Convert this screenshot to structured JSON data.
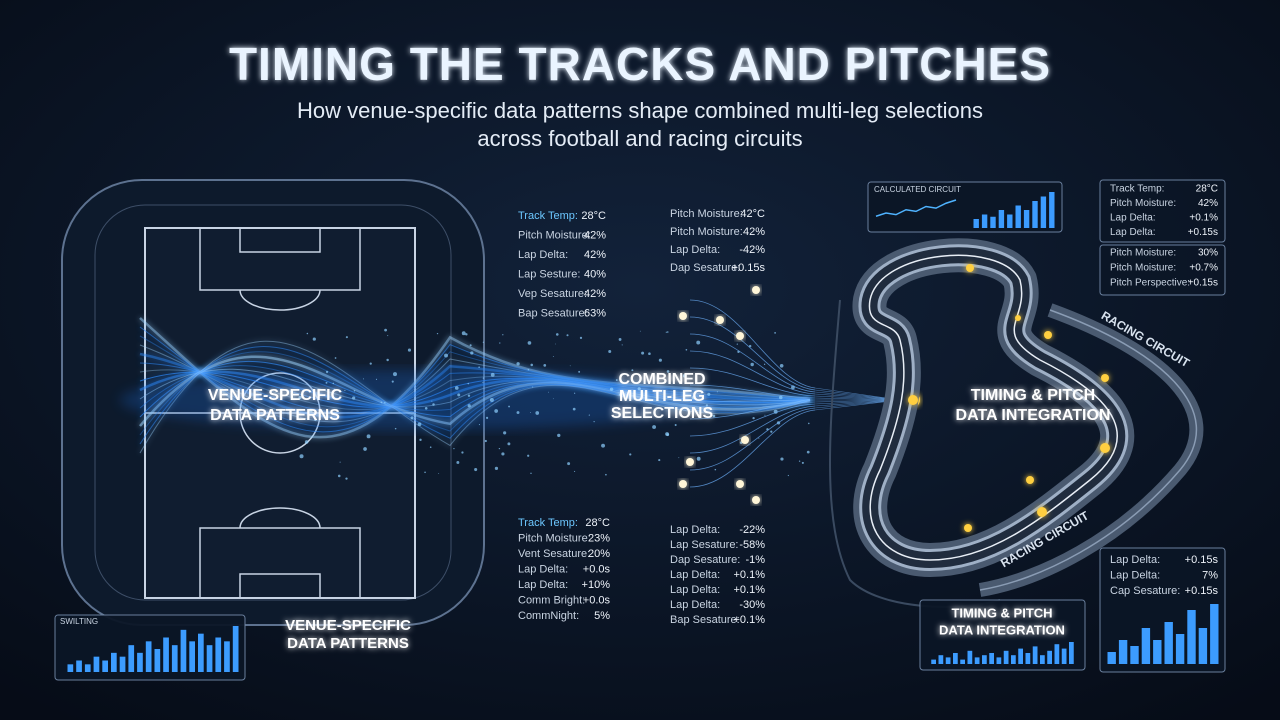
{
  "header": {
    "title": "TIMING THE TRACKS AND PITCHES",
    "subtitle": [
      "How venue-specific data patterns shape combined multi-leg selections",
      "across football and racing circuits"
    ]
  },
  "labels": {
    "pitch": [
      "VENUE-SPECIFIC",
      "DATA PATTERNS"
    ],
    "pitch_caption": [
      "VENUE-SPECIFIC",
      "DATA PATTERNS"
    ],
    "combined": [
      "COMBINED",
      "MULTI-LEG",
      "SELECTIONS"
    ],
    "integration": [
      "TIMING & PITCH",
      "DATA INTEGRATION"
    ],
    "circuit_top": "RACING CIRCUIT",
    "circuit_bottom": "RACING CIRCUIT",
    "integration_panel": [
      "TIMING & PITCH",
      "DATA INTEGRATION"
    ]
  },
  "stats": [
    {
      "rows": [
        [
          "Track Temp:",
          "28°C"
        ],
        [
          "Pitch Moisture:",
          "42%"
        ],
        [
          "Lap Delta:",
          "42%"
        ],
        [
          "Lap Sesture:",
          "40%"
        ],
        [
          "Vep Sesature:",
          "42%"
        ],
        [
          "Bap Sesature:",
          "63%"
        ]
      ]
    },
    {
      "rows": [
        [
          "Pitch Moisture:",
          "42°C"
        ],
        [
          "Pitch Moisture:",
          "42%"
        ],
        [
          "Lap Delta:",
          "-42%"
        ],
        [
          "Dap Sesature:",
          "+0.15s"
        ]
      ]
    },
    {
      "rows": [
        [
          "Track Temp:",
          "28°C"
        ],
        [
          "Pitch Moisture:",
          "23%"
        ],
        [
          "Vent Sesature:",
          "20%"
        ],
        [
          "Lap Delta:",
          "+0.0s"
        ],
        [
          "Lap Delta:",
          "+10%"
        ],
        [
          "Comm Bright:",
          "+0.0s"
        ],
        [
          "CommNight:",
          "5%"
        ]
      ]
    },
    {
      "rows": [
        [
          "Lap Delta:",
          "-22%"
        ],
        [
          "Lap Sesature:",
          "-58%"
        ],
        [
          "Dap Sesature:",
          "-1%"
        ],
        [
          "Lap Delta:",
          "+0.1%"
        ],
        [
          "Lap Delta:",
          "+0.1%"
        ],
        [
          "Lap Delta:",
          "-30%"
        ],
        [
          "Bap Sesature:",
          "+0.1%"
        ]
      ]
    },
    {
      "rows": [
        [
          "Track Temp:",
          "28°C"
        ],
        [
          "Pitch Moisture:",
          "42%"
        ],
        [
          "Lap Delta:",
          "+0.1%"
        ],
        [
          "Lap Delta:",
          "+0.15s"
        ]
      ]
    },
    {
      "rows": [
        [
          "Pitch Moisture:",
          "30%"
        ],
        [
          "Pitch Moisture:",
          "+0.7%"
        ],
        [
          "Pitch Perspective:",
          "+0.15s"
        ]
      ]
    },
    {
      "rows": [
        [
          "Lap Delta:",
          "+0.15s"
        ],
        [
          "Lap Delta:",
          "7%"
        ],
        [
          "Cap Sesature:",
          "+0.15s"
        ]
      ]
    }
  ],
  "mini_charts": [
    {
      "title": "CALCULATED CIRCUIT",
      "line": [
        3,
        4,
        3.5,
        5,
        4.5,
        6,
        5.5,
        7,
        8
      ],
      "bars": [
        2,
        3,
        2.5,
        4,
        3,
        5,
        4,
        6,
        7,
        8
      ]
    },
    {
      "title": "SWILTING",
      "bars": [
        2,
        3,
        2,
        4,
        3,
        5,
        4,
        7,
        5,
        8,
        6,
        9,
        7,
        11,
        8,
        10,
        7,
        9,
        8,
        12
      ]
    },
    {
      "bars": [
        2,
        4,
        3,
        5,
        2,
        6,
        3,
        4,
        5,
        3,
        6,
        4,
        7,
        5,
        8,
        4,
        6,
        9,
        7,
        10
      ]
    },
    {
      "bars": [
        2,
        4,
        3,
        6,
        4,
        7,
        5,
        9,
        6,
        10
      ]
    }
  ]
}
